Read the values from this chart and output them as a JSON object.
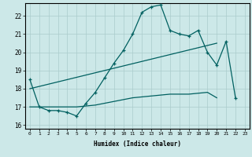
{
  "title": "",
  "xlabel": "Humidex (Indice chaleur)",
  "xlim": [
    -0.5,
    23.5
  ],
  "ylim": [
    15.8,
    22.7
  ],
  "yticks": [
    16,
    17,
    18,
    19,
    20,
    21,
    22
  ],
  "xticks": [
    0,
    1,
    2,
    3,
    4,
    5,
    6,
    7,
    8,
    9,
    10,
    11,
    12,
    13,
    14,
    15,
    16,
    17,
    18,
    19,
    20,
    21,
    22,
    23
  ],
  "background_color": "#cce8e8",
  "grid_color": "#aacccc",
  "line_color": "#006060",
  "line1_x": [
    0,
    1,
    2,
    3,
    4,
    5,
    6,
    7,
    8,
    9,
    10,
    11,
    12,
    13,
    14,
    15,
    16,
    17,
    18,
    19,
    20,
    21,
    22
  ],
  "line1_y": [
    18.5,
    17.0,
    16.8,
    16.8,
    16.7,
    16.5,
    17.2,
    17.8,
    18.6,
    19.4,
    20.1,
    21.0,
    22.2,
    22.5,
    22.6,
    21.2,
    21.0,
    20.9,
    21.2,
    20.0,
    19.3,
    20.6,
    17.5
  ],
  "line2_x": [
    0,
    20
  ],
  "line2_y": [
    18.0,
    20.5
  ],
  "line3_x": [
    0,
    1,
    2,
    3,
    4,
    5,
    6,
    7,
    8,
    9,
    10,
    11,
    12,
    13,
    14,
    15,
    16,
    17,
    18,
    19,
    20
  ],
  "line3_y": [
    17.0,
    17.0,
    17.0,
    17.0,
    17.0,
    17.0,
    17.05,
    17.1,
    17.2,
    17.3,
    17.4,
    17.5,
    17.55,
    17.6,
    17.65,
    17.7,
    17.7,
    17.7,
    17.75,
    17.8,
    17.5
  ]
}
